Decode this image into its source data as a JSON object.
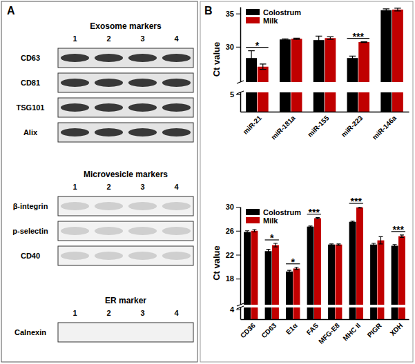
{
  "panel_labels": [
    "A",
    "B"
  ],
  "panel_a": {
    "groups": [
      {
        "title": "Exosome markers",
        "lanes": [
          "1",
          "2",
          "3",
          "4"
        ],
        "rows": [
          "CD63",
          "CD81",
          "TSG101",
          "Alix"
        ]
      },
      {
        "title": "Microvesicle markers",
        "lanes": [
          "1",
          "2",
          "3",
          "4"
        ],
        "rows": [
          "β-integrin",
          "p-selectin",
          "CD40"
        ]
      },
      {
        "title": "ER marker",
        "lanes": [
          "1",
          "2",
          "3",
          "4"
        ],
        "rows": [
          "Calnexin"
        ]
      }
    ]
  },
  "chart_data": [
    {
      "type": "bar",
      "y_label": "Ct value",
      "categories": [
        "miR-21",
        "miR-181a",
        "miR-155",
        "miR-223",
        "miR-146a"
      ],
      "series": [
        {
          "name": "Colostrum",
          "color": "#000000",
          "values": [
            28.3,
            31.1,
            31.0,
            28.3,
            35.5
          ],
          "errors": [
            1.1,
            0.1,
            0.6,
            0.3,
            0.2
          ]
        },
        {
          "name": "Milk",
          "color": "#c00000",
          "values": [
            27.0,
            31.2,
            31.3,
            30.7,
            35.6
          ],
          "errors": [
            0.4,
            0.1,
            0.2,
            0.05,
            0.2
          ]
        }
      ],
      "ylim": [
        0,
        36
      ],
      "yticks": [
        5,
        30,
        35
      ],
      "legend": "upper left",
      "annotations": [
        {
          "text": "*",
          "category": "miR-21"
        },
        {
          "text": "***",
          "category": "miR-223"
        }
      ]
    },
    {
      "type": "bar",
      "y_label": "Ct value",
      "categories": [
        "CD36",
        "CD63",
        "E1α",
        "FAS",
        "MFG-E8",
        "MHC II",
        "PIGR",
        "XDH"
      ],
      "series": [
        {
          "name": "Colostrum",
          "color": "#000000",
          "values": [
            25.8,
            22.6,
            19.2,
            26.7,
            23.7,
            27.5,
            23.7,
            23.5
          ],
          "errors": [
            0.2,
            0.3,
            0.2,
            0.1,
            0.1,
            0.1,
            0.2,
            0.2
          ]
        },
        {
          "name": "Milk",
          "color": "#c00000",
          "values": [
            26.0,
            23.6,
            19.7,
            28.1,
            23.7,
            29.9,
            24.4,
            25.1
          ],
          "errors": [
            0.2,
            0.3,
            0.2,
            0.1,
            0.1,
            0.1,
            0.6,
            0.2
          ]
        }
      ],
      "ylim": [
        0,
        30
      ],
      "yticks": [
        4,
        18,
        22,
        26,
        30
      ],
      "legend": "upper left",
      "annotations": [
        {
          "text": "*",
          "category": "CD63"
        },
        {
          "text": "*",
          "category": "E1α"
        },
        {
          "text": "***",
          "category": "FAS"
        },
        {
          "text": "***",
          "category": "MHC II"
        },
        {
          "text": "***",
          "category": "XDH"
        }
      ]
    }
  ]
}
